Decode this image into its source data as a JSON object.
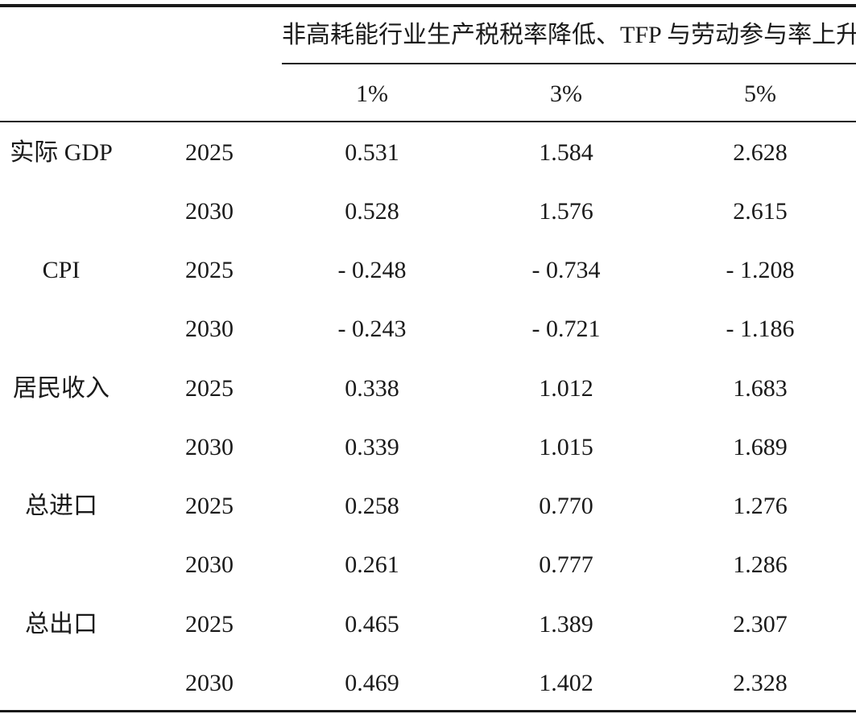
{
  "table": {
    "group_header": "非高耗能行业生产税税率降低、TFP 与劳动参与率上升",
    "columns": [
      "1%",
      "3%",
      "5%"
    ],
    "rows": [
      {
        "variable": "实际 GDP",
        "year": "2025",
        "values": [
          "0.531",
          "1.584",
          "2.628"
        ]
      },
      {
        "variable": "",
        "year": "2030",
        "values": [
          "0.528",
          "1.576",
          "2.615"
        ]
      },
      {
        "variable": "CPI",
        "year": "2025",
        "values": [
          "- 0.248",
          "- 0.734",
          "- 1.208"
        ]
      },
      {
        "variable": "",
        "year": "2030",
        "values": [
          "- 0.243",
          "- 0.721",
          "- 1.186"
        ]
      },
      {
        "variable": "居民收入",
        "year": "2025",
        "values": [
          "0.338",
          "1.012",
          "1.683"
        ]
      },
      {
        "variable": "",
        "year": "2030",
        "values": [
          "0.339",
          "1.015",
          "1.689"
        ]
      },
      {
        "variable": "总进口",
        "year": "2025",
        "values": [
          "0.258",
          "0.770",
          "1.276"
        ]
      },
      {
        "variable": "",
        "year": "2030",
        "values": [
          "0.261",
          "0.777",
          "1.286"
        ]
      },
      {
        "variable": "总出口",
        "year": "2025",
        "values": [
          "0.465",
          "1.389",
          "2.307"
        ]
      },
      {
        "variable": "",
        "year": "2030",
        "values": [
          "0.469",
          "1.402",
          "2.328"
        ]
      }
    ]
  }
}
